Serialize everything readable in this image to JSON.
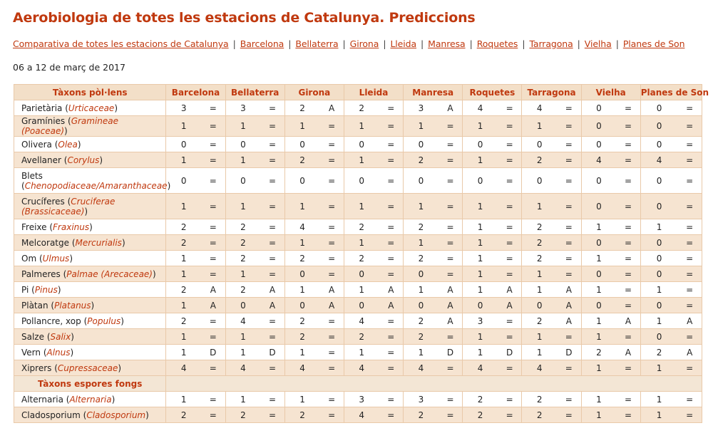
{
  "title": "Aerobiologia de totes les estacions de Catalunya. Prediccions",
  "nav": {
    "links": [
      "Comparativa de totes les estacions de Catalunya",
      "Barcelona",
      "Bellaterra",
      "Girona",
      "Lleida",
      "Manresa",
      "Roquetes",
      "Tarragona",
      "Vielha",
      "Planes de Son"
    ],
    "separator": "|"
  },
  "date_range": "06 a 12 de març de 2017",
  "table": {
    "taxa_header": "Tàxons pòl·lens",
    "stations": [
      "Barcelona",
      "Bellaterra",
      "Girona",
      "Lleida",
      "Manresa",
      "Roquetes",
      "Tarragona",
      "Vielha",
      "Planes de Son"
    ],
    "pollen_rows": [
      {
        "name": "Parietària",
        "latin": "Urticaceae",
        "cells": [
          [
            "3",
            "="
          ],
          [
            "3",
            "="
          ],
          [
            "2",
            "A"
          ],
          [
            "2",
            "="
          ],
          [
            "3",
            "A"
          ],
          [
            "4",
            "="
          ],
          [
            "4",
            "="
          ],
          [
            "0",
            "="
          ],
          [
            "0",
            "="
          ]
        ]
      },
      {
        "name": "Gramínies",
        "latin": "Gramineae (Poaceae)",
        "cells": [
          [
            "1",
            "="
          ],
          [
            "1",
            "="
          ],
          [
            "1",
            "="
          ],
          [
            "1",
            "="
          ],
          [
            "1",
            "="
          ],
          [
            "1",
            "="
          ],
          [
            "1",
            "="
          ],
          [
            "0",
            "="
          ],
          [
            "0",
            "="
          ]
        ]
      },
      {
        "name": "Olivera",
        "latin": "Olea",
        "cells": [
          [
            "0",
            "="
          ],
          [
            "0",
            "="
          ],
          [
            "0",
            "="
          ],
          [
            "0",
            "="
          ],
          [
            "0",
            "="
          ],
          [
            "0",
            "="
          ],
          [
            "0",
            "="
          ],
          [
            "0",
            "="
          ],
          [
            "0",
            "="
          ]
        ]
      },
      {
        "name": "Avellaner",
        "latin": "Corylus",
        "cells": [
          [
            "1",
            "="
          ],
          [
            "1",
            "="
          ],
          [
            "2",
            "="
          ],
          [
            "1",
            "="
          ],
          [
            "2",
            "="
          ],
          [
            "1",
            "="
          ],
          [
            "2",
            "="
          ],
          [
            "4",
            "="
          ],
          [
            "4",
            "="
          ]
        ]
      },
      {
        "name": "Blets",
        "latin": "Chenopodiaceae/Amaranthaceae",
        "tall": true,
        "cells": [
          [
            "0",
            "="
          ],
          [
            "0",
            "="
          ],
          [
            "0",
            "="
          ],
          [
            "0",
            "="
          ],
          [
            "0",
            "="
          ],
          [
            "0",
            "="
          ],
          [
            "0",
            "="
          ],
          [
            "0",
            "="
          ],
          [
            "0",
            "="
          ]
        ]
      },
      {
        "name": "Crucíferes",
        "latin": "Cruciferae (Brassicaceae)",
        "tall": true,
        "cells": [
          [
            "1",
            "="
          ],
          [
            "1",
            "="
          ],
          [
            "1",
            "="
          ],
          [
            "1",
            "="
          ],
          [
            "1",
            "="
          ],
          [
            "1",
            "="
          ],
          [
            "1",
            "="
          ],
          [
            "0",
            "="
          ],
          [
            "0",
            "="
          ]
        ]
      },
      {
        "name": "Freixe",
        "latin": "Fraxinus",
        "cells": [
          [
            "2",
            "="
          ],
          [
            "2",
            "="
          ],
          [
            "4",
            "="
          ],
          [
            "2",
            "="
          ],
          [
            "2",
            "="
          ],
          [
            "1",
            "="
          ],
          [
            "2",
            "="
          ],
          [
            "1",
            "="
          ],
          [
            "1",
            "="
          ]
        ]
      },
      {
        "name": "Melcoratge",
        "latin": "Mercurialis",
        "cells": [
          [
            "2",
            "="
          ],
          [
            "2",
            "="
          ],
          [
            "1",
            "="
          ],
          [
            "1",
            "="
          ],
          [
            "1",
            "="
          ],
          [
            "1",
            "="
          ],
          [
            "2",
            "="
          ],
          [
            "0",
            "="
          ],
          [
            "0",
            "="
          ]
        ]
      },
      {
        "name": "Om",
        "latin": "Ulmus",
        "cells": [
          [
            "1",
            "="
          ],
          [
            "2",
            "="
          ],
          [
            "2",
            "="
          ],
          [
            "2",
            "="
          ],
          [
            "2",
            "="
          ],
          [
            "1",
            "="
          ],
          [
            "2",
            "="
          ],
          [
            "1",
            "="
          ],
          [
            "0",
            "="
          ]
        ]
      },
      {
        "name": "Palmeres",
        "latin": "Palmae (Arecaceae)",
        "cells": [
          [
            "1",
            "="
          ],
          [
            "1",
            "="
          ],
          [
            "0",
            "="
          ],
          [
            "0",
            "="
          ],
          [
            "0",
            "="
          ],
          [
            "1",
            "="
          ],
          [
            "1",
            "="
          ],
          [
            "0",
            "="
          ],
          [
            "0",
            "="
          ]
        ]
      },
      {
        "name": "Pi",
        "latin": "Pinus",
        "cells": [
          [
            "2",
            "A"
          ],
          [
            "2",
            "A"
          ],
          [
            "1",
            "A"
          ],
          [
            "1",
            "A"
          ],
          [
            "1",
            "A"
          ],
          [
            "1",
            "A"
          ],
          [
            "1",
            "A"
          ],
          [
            "1",
            "="
          ],
          [
            "1",
            "="
          ]
        ]
      },
      {
        "name": "Plàtan",
        "latin": "Platanus",
        "cells": [
          [
            "1",
            "A"
          ],
          [
            "0",
            "A"
          ],
          [
            "0",
            "A"
          ],
          [
            "0",
            "A"
          ],
          [
            "0",
            "A"
          ],
          [
            "0",
            "A"
          ],
          [
            "0",
            "A"
          ],
          [
            "0",
            "="
          ],
          [
            "0",
            "="
          ]
        ]
      },
      {
        "name": "Pollancre, xop",
        "latin": "Populus",
        "cells": [
          [
            "2",
            "="
          ],
          [
            "4",
            "="
          ],
          [
            "2",
            "="
          ],
          [
            "4",
            "="
          ],
          [
            "2",
            "A"
          ],
          [
            "3",
            "="
          ],
          [
            "2",
            "A"
          ],
          [
            "1",
            "A"
          ],
          [
            "1",
            "A"
          ]
        ]
      },
      {
        "name": "Salze",
        "latin": "Salix",
        "cells": [
          [
            "1",
            "="
          ],
          [
            "1",
            "="
          ],
          [
            "2",
            "="
          ],
          [
            "2",
            "="
          ],
          [
            "2",
            "="
          ],
          [
            "1",
            "="
          ],
          [
            "1",
            "="
          ],
          [
            "1",
            "="
          ],
          [
            "0",
            "="
          ]
        ]
      },
      {
        "name": "Vern",
        "latin": "Alnus",
        "cells": [
          [
            "1",
            "D"
          ],
          [
            "1",
            "D"
          ],
          [
            "1",
            "="
          ],
          [
            "1",
            "="
          ],
          [
            "1",
            "D"
          ],
          [
            "1",
            "D"
          ],
          [
            "1",
            "D"
          ],
          [
            "2",
            "A"
          ],
          [
            "2",
            "A"
          ]
        ]
      },
      {
        "name": "Xiprers",
        "latin": "Cupressaceae",
        "cells": [
          [
            "4",
            "="
          ],
          [
            "4",
            "="
          ],
          [
            "4",
            "="
          ],
          [
            "4",
            "="
          ],
          [
            "4",
            "="
          ],
          [
            "4",
            "="
          ],
          [
            "4",
            "="
          ],
          [
            "1",
            "="
          ],
          [
            "1",
            "="
          ]
        ]
      }
    ],
    "spores_header": "Tàxons espores fongs",
    "spore_rows": [
      {
        "name": "Alternaria",
        "latin": "Alternaria",
        "cells": [
          [
            "1",
            "="
          ],
          [
            "1",
            "="
          ],
          [
            "1",
            "="
          ],
          [
            "3",
            "="
          ],
          [
            "3",
            "="
          ],
          [
            "2",
            "="
          ],
          [
            "2",
            "="
          ],
          [
            "1",
            "="
          ],
          [
            "1",
            "="
          ]
        ]
      },
      {
        "name": "Cladosporium",
        "latin": "Cladosporium",
        "cells": [
          [
            "2",
            "="
          ],
          [
            "2",
            "="
          ],
          [
            "2",
            "="
          ],
          [
            "4",
            "="
          ],
          [
            "2",
            "="
          ],
          [
            "2",
            "="
          ],
          [
            "2",
            "="
          ],
          [
            "1",
            "="
          ],
          [
            "1",
            "="
          ]
        ]
      }
    ]
  }
}
